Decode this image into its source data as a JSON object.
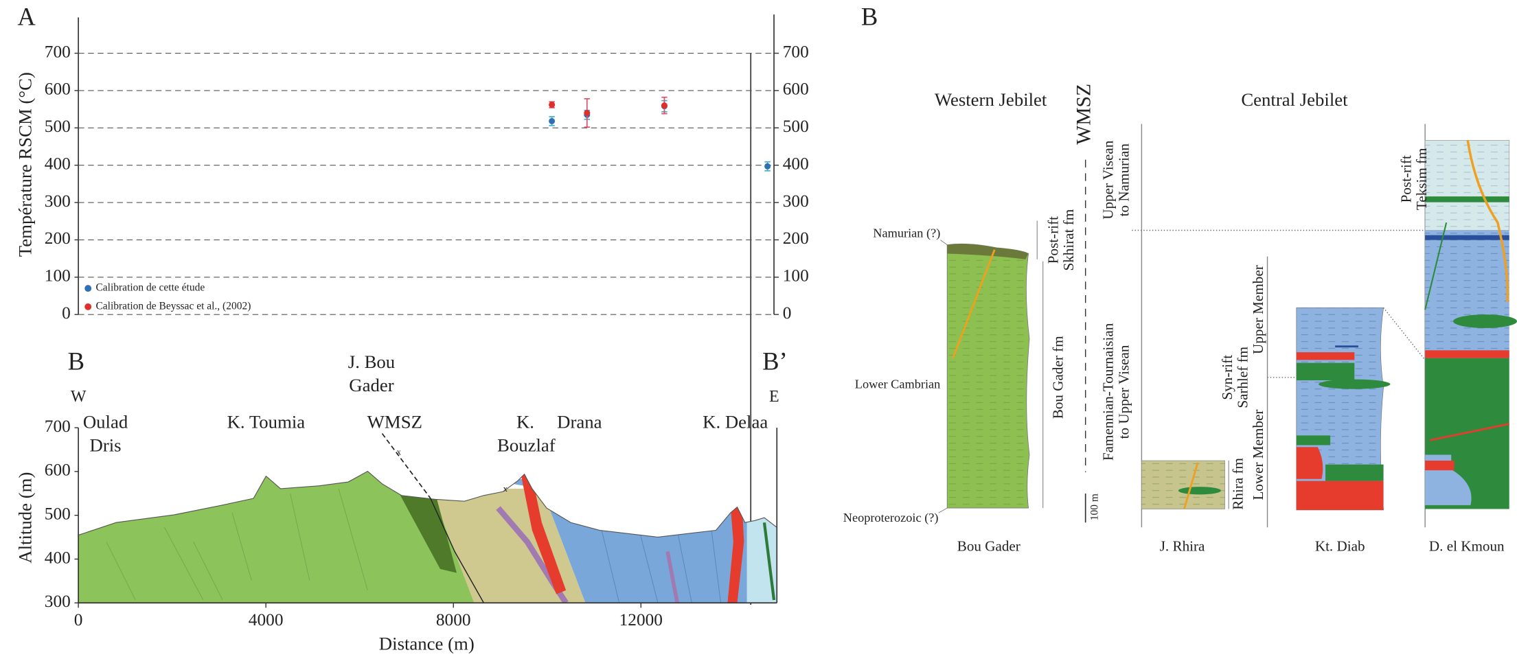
{
  "chart_data": [
    {
      "type": "scatter",
      "panel": "A",
      "ylabel": "Température RSCM (°C)",
      "xlim": [
        0,
        14900
      ],
      "ylim": [
        0,
        700
      ],
      "yticks": [
        0,
        100,
        200,
        300,
        400,
        500,
        600,
        700
      ],
      "y2lim": [
        0,
        700
      ],
      "y2ticks": [
        0,
        100,
        200,
        300,
        400,
        500,
        600,
        700
      ],
      "grid": true,
      "series": [
        {
          "name": "Calibration de cette étude",
          "color": "#2e6fb5",
          "error_color": "#3bb3c9",
          "x": [
            10100,
            10850,
            12500,
            14700
          ],
          "values": [
            518,
            535,
            558,
            397
          ],
          "errors": [
            12,
            12,
            15,
            12
          ]
        },
        {
          "name": "Calibration de Beyssac et al., (2002)",
          "color": "#e0302c",
          "error_color": "#e0506a",
          "x": [
            10100,
            10850,
            12500
          ],
          "values": [
            562,
            540,
            560
          ],
          "errors": [
            8,
            38,
            22
          ]
        }
      ]
    },
    {
      "type": "section",
      "xlabel": "Distance (m)",
      "ylabel": "Altitude (m)",
      "xlim": [
        0,
        14900
      ],
      "xticks": [
        0,
        4000,
        8000,
        12000
      ],
      "ylim": [
        300,
        700
      ],
      "yticks": [
        300,
        400,
        500,
        600,
        700
      ]
    }
  ],
  "section": {
    "start": "B",
    "end": "B’",
    "west": "W",
    "east": "E",
    "places": [
      {
        "lines": [
          "Oulad",
          "Dris"
        ]
      },
      {
        "lines": [
          "K. Toumia"
        ]
      },
      {
        "lines": [
          "J. Bou",
          "Gader"
        ]
      },
      {
        "lines": [
          "WMSZ"
        ]
      },
      {
        "lines": [
          "K.",
          "Bouzlaf"
        ]
      },
      {
        "lines": [
          "Drana"
        ]
      },
      {
        "lines": [
          "K. Delaa"
        ]
      }
    ]
  },
  "stratigraphy": {
    "panel": "B",
    "shear_zone": "WMSZ",
    "regions": [
      "Western Jebilet",
      "Central Jebilet"
    ],
    "western": {
      "ages": [
        "Namurian (?)",
        "Lower Cambrian",
        "Neoproterozoic (?)"
      ],
      "units": [
        [
          "Post-rift",
          "Skhirat fm"
        ],
        [
          "Bou Gader fm"
        ]
      ],
      "column": "Bou Gader"
    },
    "periods": [
      [
        "Upper Visean",
        "to Namurian"
      ],
      [
        "Famennian-Tournaisian",
        "to Upper Visean"
      ]
    ],
    "scale": "100 m",
    "columns": [
      {
        "name": "J. Rhira",
        "units": [
          [
            "Rhira fm"
          ]
        ]
      },
      {
        "name": "Kt. Diab",
        "units": [
          [
            "Syn-rift",
            "Sarhlef fm"
          ]
        ],
        "members": [
          "Upper Member",
          "Lower Member"
        ]
      },
      {
        "name": "D. el Kmoun",
        "units": [
          [
            "Post-rift",
            "Teksim fm"
          ]
        ]
      }
    ]
  }
}
